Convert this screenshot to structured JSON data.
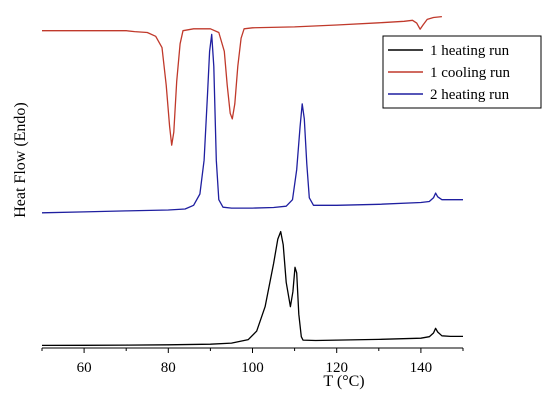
{
  "chart_data": {
    "type": "line",
    "title": "",
    "xlabel": "T (°C)",
    "ylabel": "Heat Flow (Endo)",
    "xlim": [
      50,
      150
    ],
    "x_ticks": [
      60,
      80,
      100,
      120,
      140
    ],
    "y_ticks_shown": false,
    "grid": false,
    "legend_position": "top-right",
    "series": [
      {
        "name": "1 heating run",
        "color": "#000000",
        "points": [
          [
            50,
            1.4
          ],
          [
            60,
            1.45
          ],
          [
            70,
            1.55
          ],
          [
            80,
            1.7
          ],
          [
            90,
            2.0
          ],
          [
            95,
            2.6
          ],
          [
            99,
            4.5
          ],
          [
            101,
            9
          ],
          [
            103,
            22
          ],
          [
            105,
            45
          ],
          [
            106,
            58
          ],
          [
            106.7,
            62
          ],
          [
            107.3,
            55
          ],
          [
            108,
            35
          ],
          [
            109,
            22
          ],
          [
            109.6,
            30
          ],
          [
            110.1,
            43
          ],
          [
            110.5,
            40
          ],
          [
            111,
            18
          ],
          [
            111.6,
            6
          ],
          [
            112,
            4.2
          ],
          [
            115,
            4.0
          ],
          [
            120,
            4.2
          ],
          [
            130,
            4.6
          ],
          [
            140,
            5.2
          ],
          [
            142,
            6.0
          ],
          [
            143,
            8.0
          ],
          [
            143.5,
            10.5
          ],
          [
            144,
            8.5
          ],
          [
            145,
            6.5
          ],
          [
            147,
            6.2
          ],
          [
            150,
            6.2
          ]
        ]
      },
      {
        "name": "1 cooling run",
        "color": "#c0392b",
        "points": [
          [
            50,
            169
          ],
          [
            60,
            169
          ],
          [
            65,
            169
          ],
          [
            70,
            169
          ],
          [
            72,
            168.5
          ],
          [
            75,
            168
          ],
          [
            77,
            166
          ],
          [
            78.5,
            160
          ],
          [
            79.5,
            140
          ],
          [
            80.3,
            118
          ],
          [
            80.8,
            108
          ],
          [
            81.3,
            115
          ],
          [
            82,
            142
          ],
          [
            82.8,
            162
          ],
          [
            83.5,
            169
          ],
          [
            86,
            170
          ],
          [
            90,
            170
          ],
          [
            92,
            168
          ],
          [
            93.3,
            158
          ],
          [
            94,
            140
          ],
          [
            94.7,
            125
          ],
          [
            95.2,
            122
          ],
          [
            95.8,
            130
          ],
          [
            96.5,
            150
          ],
          [
            97.3,
            165
          ],
          [
            98,
            170
          ],
          [
            100,
            170.5
          ],
          [
            110,
            171
          ],
          [
            120,
            172
          ],
          [
            130,
            173.2
          ],
          [
            136,
            174
          ],
          [
            138,
            174.5
          ],
          [
            139,
            173
          ],
          [
            139.8,
            169.8
          ],
          [
            140.5,
            172
          ],
          [
            141.5,
            175
          ],
          [
            143,
            176
          ],
          [
            145,
            176.5
          ]
        ]
      },
      {
        "name": "2 heating run",
        "color": "#1f1fa0",
        "points": [
          [
            50,
            72
          ],
          [
            60,
            72.5
          ],
          [
            70,
            73
          ],
          [
            80,
            73.5
          ],
          [
            84,
            74
          ],
          [
            86,
            76
          ],
          [
            87.5,
            82
          ],
          [
            88.5,
            100
          ],
          [
            89.3,
            135
          ],
          [
            89.8,
            158
          ],
          [
            90.3,
            167
          ],
          [
            90.8,
            150
          ],
          [
            91.4,
            100
          ],
          [
            92,
            79
          ],
          [
            93,
            75
          ],
          [
            95,
            74.5
          ],
          [
            100,
            74.5
          ],
          [
            105,
            74.8
          ],
          [
            108,
            75.5
          ],
          [
            109.5,
            79
          ],
          [
            110.5,
            95
          ],
          [
            111.3,
            118
          ],
          [
            111.8,
            130
          ],
          [
            112.3,
            122
          ],
          [
            112.9,
            98
          ],
          [
            113.5,
            80
          ],
          [
            114.5,
            76
          ],
          [
            120,
            76
          ],
          [
            130,
            76.5
          ],
          [
            140,
            77.5
          ],
          [
            142,
            78
          ],
          [
            143,
            80
          ],
          [
            143.5,
            82.5
          ],
          [
            144,
            80.5
          ],
          [
            145,
            79
          ],
          [
            148,
            79
          ],
          [
            150,
            79
          ]
        ]
      }
    ]
  }
}
